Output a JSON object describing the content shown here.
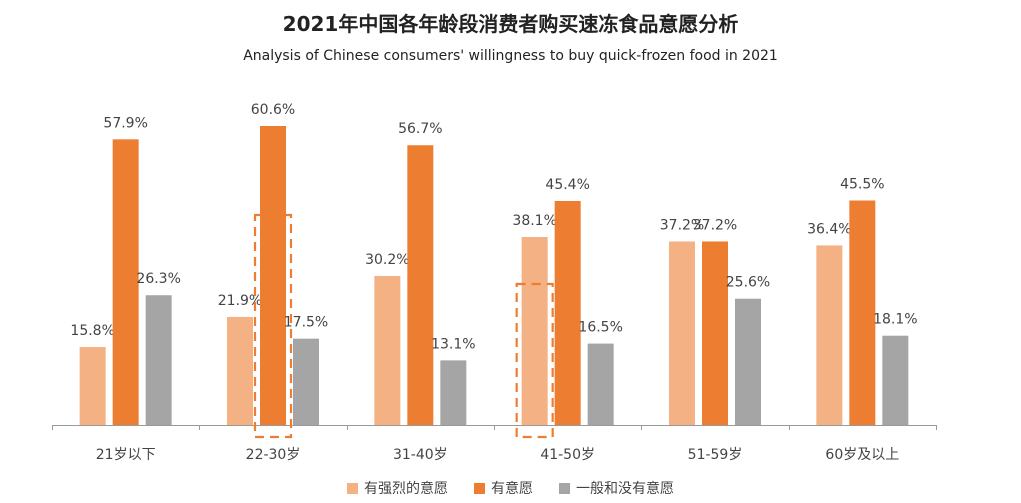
{
  "title": "2021年中国各年龄段消费者购买速冻食品意愿分析",
  "subtitle": "Analysis of Chinese consumers' willingness to buy quick-frozen food in 2021",
  "colors": {
    "strong": "#F4B183",
    "willing": "#ED7D31",
    "neutral": "#A5A5A5",
    "highlight": "#ED7D31"
  },
  "chart_data": {
    "type": "bar",
    "categories": [
      "21岁以下",
      "22-30岁",
      "31-40岁",
      "41-50岁",
      "51-59岁",
      "60岁及以上"
    ],
    "series": [
      {
        "name": "有强烈的意愿",
        "values": [
          15.8,
          21.9,
          30.2,
          38.1,
          37.2,
          36.4
        ],
        "labels": [
          "15.8%",
          "21.9%",
          "30.2%",
          "38.1%",
          "37.2%",
          "36.4%"
        ]
      },
      {
        "name": "有意愿",
        "values": [
          57.9,
          60.6,
          56.7,
          45.4,
          37.2,
          45.5
        ],
        "labels": [
          "57.9%",
          "60.6%",
          "56.7%",
          "45.4%",
          "37.2%",
          "45.5%"
        ]
      },
      {
        "name": "一般和没有意愿",
        "values": [
          26.3,
          17.5,
          13.1,
          16.5,
          25.6,
          18.1
        ],
        "labels": [
          "26.3%",
          "17.5%",
          "13.1%",
          "16.5%",
          "25.6%",
          "18.1%"
        ]
      }
    ],
    "ylim": [
      0,
      70
    ],
    "legend_position": "bottom",
    "grid": false,
    "highlights": [
      {
        "category": "22-30岁",
        "series": "有意愿"
      },
      {
        "category": "41-50岁",
        "series": "有强烈的意愿"
      }
    ]
  }
}
